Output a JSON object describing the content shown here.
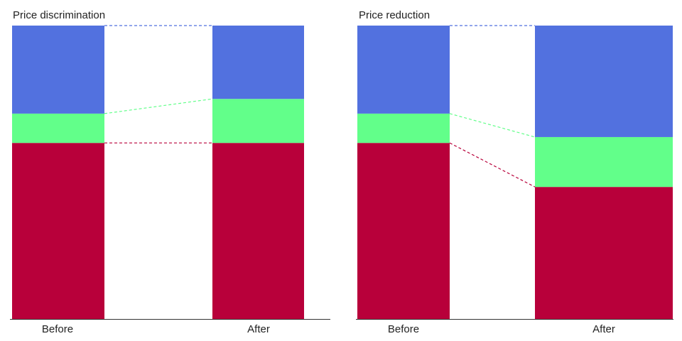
{
  "colors": {
    "bottom": "#b8003a",
    "middle": "#62ff8a",
    "top": "#5271df",
    "axis": "#333333"
  },
  "chart_data": [
    {
      "type": "bar",
      "stacked": true,
      "title": "Price discrimination",
      "categories": [
        "Before",
        "After"
      ],
      "series": [
        {
          "values": [
            60,
            60
          ],
          "color": "#b8003a"
        },
        {
          "values": [
            10,
            15
          ],
          "color": "#62ff8a"
        },
        {
          "values": [
            30,
            25
          ],
          "color": "#5271df"
        }
      ],
      "ylim": [
        0,
        100
      ],
      "grid": false,
      "connectors": "dashed"
    },
    {
      "type": "bar",
      "stacked": true,
      "title": "Price reduction",
      "categories": [
        "Before",
        "After"
      ],
      "series": [
        {
          "values": [
            60,
            45
          ],
          "color": "#b8003a"
        },
        {
          "values": [
            10,
            17
          ],
          "color": "#62ff8a"
        },
        {
          "values": [
            30,
            38
          ],
          "color": "#5271df"
        }
      ],
      "ylim": [
        0,
        100
      ],
      "grid": false,
      "connectors": "dashed"
    }
  ]
}
